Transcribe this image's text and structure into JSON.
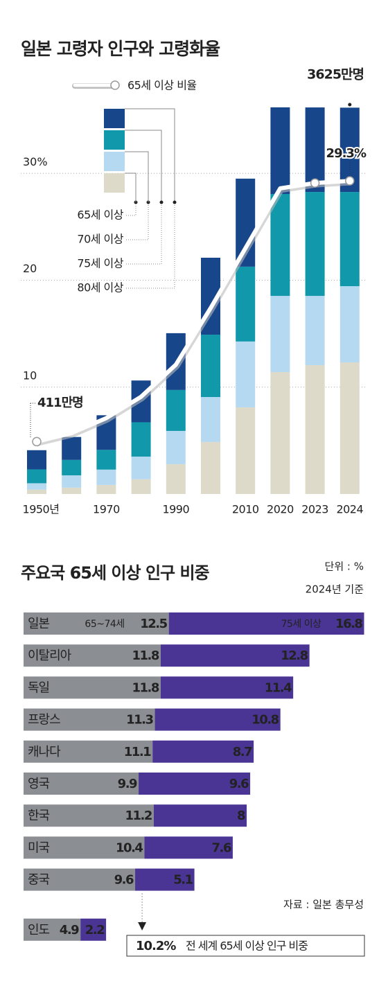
{
  "chart_data": [
    {
      "type": "bar-line",
      "title": "일본 고령자 인구와 고령화율",
      "categories": [
        "1950년",
        null,
        "1970",
        null,
        "1990",
        null,
        "2010",
        "2020",
        "2023",
        "2024"
      ],
      "series": [
        {
          "name": "80세 이상",
          "color": "#dddac9",
          "axis": "y2",
          "values": [
            41,
            60,
            85,
            139,
            280,
            488,
            813,
            1144,
            1209,
            1235
          ]
        },
        {
          "name": "75세 이상",
          "color": "#b5d9f1",
          "axis": "y2",
          "values": [
            60,
            115,
            144,
            212,
            312,
            422,
            618,
            715,
            650,
            715
          ]
        },
        {
          "name": "70세 이상",
          "color": "#1199ab",
          "axis": "y2",
          "values": [
            130,
            145,
            185,
            322,
            384,
            585,
            702,
            956,
            975,
            884
          ]
        },
        {
          "name": "65세 이상",
          "color": "#17468b",
          "axis": "y2",
          "values": [
            180,
            215,
            325,
            392,
            533,
            722,
            826,
            813,
            793,
            791
          ]
        },
        {
          "name": "65세 이상 비율",
          "type": "line",
          "color": "#ffffff",
          "axis": "y",
          "values": [
            4.9,
            5.7,
            7.1,
            9.1,
            12.1,
            17.4,
            23.0,
            28.6,
            29.1,
            29.3
          ],
          "value_labels": [
            null,
            null,
            null,
            null,
            null,
            null,
            null,
            null,
            null,
            "29.3%"
          ]
        }
      ],
      "annotations": [
        "411만명",
        "3625만명"
      ],
      "ylim": [
        0,
        36.5
      ],
      "yticks": [
        10,
        20,
        {
          "value": 30,
          "label": "30%"
        }
      ],
      "y2lim": [
        0,
        3660
      ],
      "grid": true
    },
    {
      "type": "hbar-stacked",
      "title": "주요국 65세 이상 인구 비중",
      "subtitle": [
        "단위 : %",
        "2024년 기준"
      ],
      "categories": [
        "일본",
        "이탈리아",
        "독일",
        "프랑스",
        "캐나다",
        "영국",
        "한국",
        "미국",
        "중국",
        "인도"
      ],
      "series": [
        {
          "name": "65~74세",
          "color": "#8b8e92",
          "values": [
            12.5,
            11.8,
            11.8,
            11.3,
            11.1,
            9.9,
            11.2,
            10.4,
            9.6,
            4.9
          ]
        },
        {
          "name": "75세 이상",
          "color": "#4a3595",
          "values": [
            16.8,
            12.8,
            11.4,
            10.8,
            8.7,
            9.6,
            8.0,
            7.6,
            5.1,
            2.2
          ]
        }
      ],
      "xlim": [
        0,
        31
      ],
      "reference_line": {
        "value": 10.2,
        "value_label": "10.2%",
        "text": "전 세계 65세 이상 인구 비중"
      },
      "source": "자료 : 일본 총무성"
    }
  ]
}
